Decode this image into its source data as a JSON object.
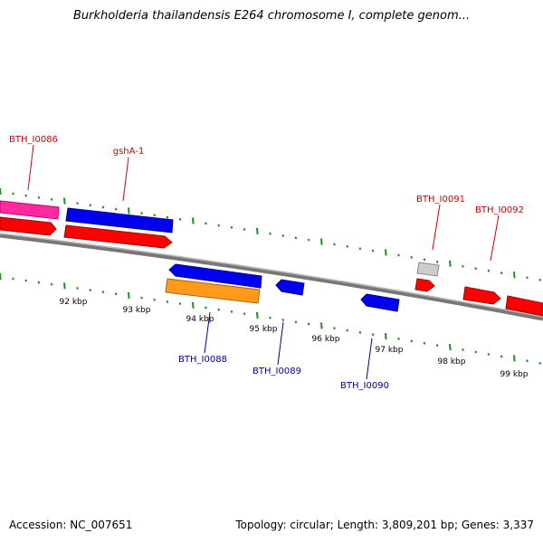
{
  "header": {
    "title": "Burkholderia thailandensis E264 chromosome I, complete genom..."
  },
  "footer": {
    "accession": "Accession: NC_007651",
    "topology": "Topology: circular; Length: 3,809,201 bp; Genes: 3,337"
  },
  "colors": {
    "forward_gene": "#ff0000",
    "reverse_gene": "#0000ff",
    "pink_gene": "#ff1493",
    "orange_gene": "#ff8c00",
    "gray_gene": "#bbbbbb",
    "forward_label": "#cc0000",
    "reverse_label": "#000099",
    "ticks": "#228b22",
    "backbone": "#808080"
  },
  "scale_labels": [
    "92 kbp",
    "93 kbp",
    "94 kbp",
    "95 kbp",
    "96 kbp",
    "97 kbp",
    "98 kbp",
    "99 kbp"
  ],
  "gene_labels": {
    "forward": [
      "BTH_I0086",
      "gshA-1",
      "BTH_I0091",
      "BTH_I0092"
    ],
    "reverse": [
      "BTH_I0088",
      "BTH_I0089",
      "BTH_I0090"
    ]
  }
}
